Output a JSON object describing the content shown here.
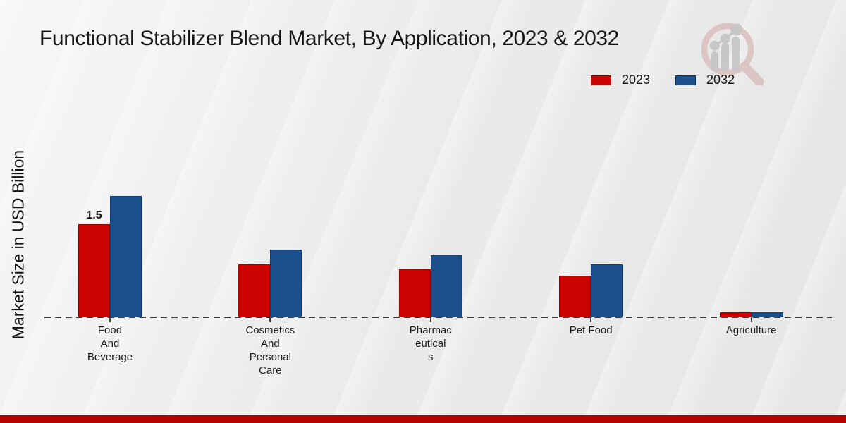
{
  "chart_data": {
    "type": "bar",
    "title": "Functional Stabilizer Blend Market, By Application, 2023 & 2032",
    "ylabel": "Market Size in USD Billion",
    "xlabel": "",
    "categories": [
      "Food\nAnd\nBeverage",
      "Cosmetics\nAnd\nPersonal\nCare",
      "Pharmac\neutical\ns",
      "Pet Food",
      "Agriculture"
    ],
    "series": [
      {
        "name": "2023",
        "color": "#cb0301",
        "values": [
          1.5,
          0.85,
          0.77,
          0.67,
          0.08
        ]
      },
      {
        "name": "2032",
        "color": "#1a4f8c",
        "values": [
          1.95,
          1.09,
          1.0,
          0.85,
          0.08
        ]
      }
    ],
    "point_labels": [
      {
        "series_index": 0,
        "category_index": 0,
        "text": "1.5"
      }
    ],
    "legend_position": "top-right",
    "grid": false,
    "baseline_style": "dashed",
    "ylim": [
      0,
      2.2
    ]
  },
  "page": {
    "bottom_strip_color": "#b50400",
    "background_color": "#ebebeb"
  },
  "logo": {
    "ring_color": "#d9bcbc",
    "bars_color": "#c6c6c6"
  }
}
